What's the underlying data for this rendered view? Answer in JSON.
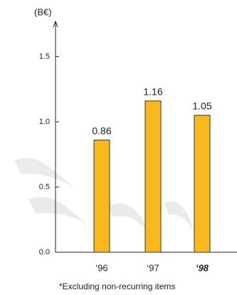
{
  "chart_data": {
    "type": "bar",
    "unit_label": "(B€)",
    "categories": [
      "‘96",
      "‘97",
      "‘98"
    ],
    "values": [
      0.86,
      1.16,
      1.05
    ],
    "value_labels": [
      "0.86",
      "1.16",
      "1.05"
    ],
    "color": "#f9b81b",
    "ylim": [
      0,
      1.77
    ],
    "yticks": [
      {
        "value": 0,
        "label": "0.0"
      },
      0.5,
      {
        "value": 1,
        "label": "1.0"
      },
      1.5
    ],
    "footnote": "*Excluding non-recurring items"
  }
}
